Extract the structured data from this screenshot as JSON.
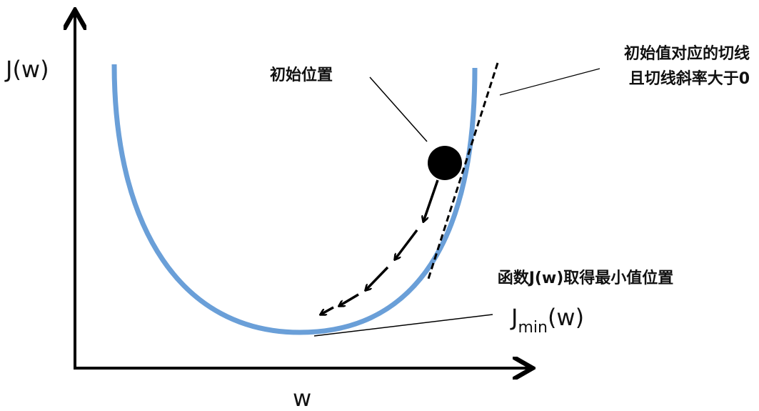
{
  "axes": {
    "y_label": "J(w)",
    "x_label": "w"
  },
  "annotations": {
    "start": "初始位置",
    "tangent_line1": "初始值对应的切线",
    "tangent_line2": "且切线斜率大于0",
    "minimum": "函数J(w)取得最小值位置",
    "jmin": {
      "base": "J",
      "sub": "min",
      "tail": "(w)"
    }
  }
}
